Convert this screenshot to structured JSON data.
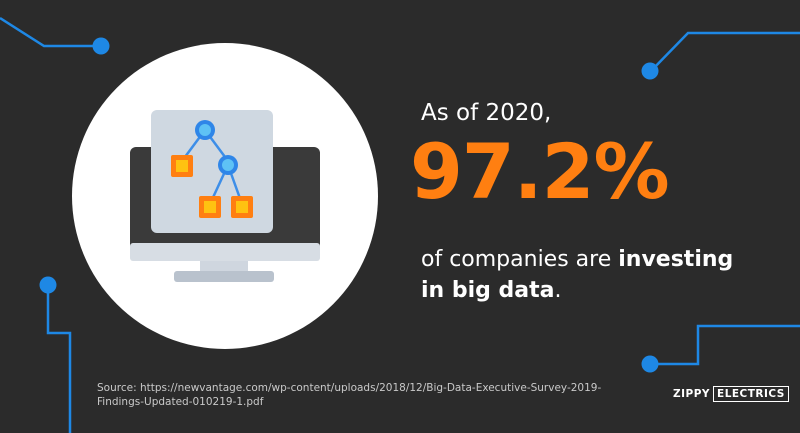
{
  "colors": {
    "background": "#2b2b2b",
    "accent_orange": "#ff7f11",
    "circuit_blue": "#1e88e5",
    "text_white": "#ffffff"
  },
  "icons": [
    "monitor-icon",
    "hierarchy-diagram-icon",
    "circuit-line-icon"
  ],
  "stat": {
    "intro": "As of 2020,",
    "value": "97.2%",
    "text_prefix": "of companies are ",
    "text_bold_1": "investing",
    "text_bold_2": "in big data",
    "text_suffix": "."
  },
  "source": "Source: https://newvantage.com/wp-content/uploads/2018/12/Big-Data-Executive-Survey-2019-Findings-Updated-010219-1.pdf",
  "brand": {
    "part1": "ZIPPY",
    "part2": "ELECTRICS"
  }
}
